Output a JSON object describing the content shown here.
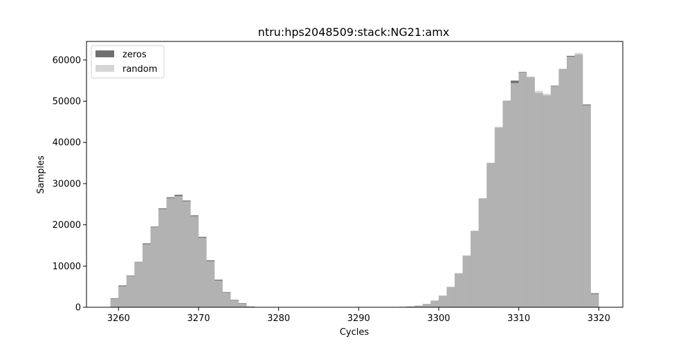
{
  "chart_data": {
    "type": "bar",
    "title": "ntru:hps2048509:stack:NG21:amx",
    "xlabel": "Cycles",
    "ylabel": "Samples",
    "xlim": [
      3256,
      3323
    ],
    "ylim": [
      0,
      64500
    ],
    "xticks": [
      3260,
      3270,
      3280,
      3290,
      3300,
      3310,
      3320
    ],
    "yticks": [
      0,
      10000,
      20000,
      30000,
      40000,
      50000,
      60000
    ],
    "grid": false,
    "legend_position": "top-left",
    "bin_width": 1,
    "x": [
      3259,
      3260,
      3261,
      3262,
      3263,
      3264,
      3265,
      3266,
      3267,
      3268,
      3269,
      3270,
      3271,
      3272,
      3273,
      3274,
      3275,
      3276,
      3277,
      3278,
      3279,
      3280,
      3281,
      3282,
      3283,
      3284,
      3285,
      3286,
      3287,
      3288,
      3289,
      3290,
      3291,
      3292,
      3293,
      3294,
      3295,
      3296,
      3297,
      3298,
      3299,
      3300,
      3301,
      3302,
      3303,
      3304,
      3305,
      3306,
      3307,
      3308,
      3309,
      3310,
      3311,
      3312,
      3313,
      3314,
      3315,
      3316,
      3317,
      3318,
      3319
    ],
    "series": [
      {
        "name": "zeros",
        "color": "#404040",
        "values": [
          2200,
          5300,
          7700,
          11000,
          15500,
          19600,
          24000,
          26700,
          27300,
          25900,
          22300,
          17100,
          11400,
          6700,
          3700,
          1800,
          1000,
          200,
          0,
          0,
          0,
          0,
          0,
          0,
          0,
          0,
          0,
          0,
          0,
          0,
          0,
          0,
          0,
          0,
          0,
          0,
          100,
          200,
          400,
          800,
          1600,
          2800,
          4900,
          8200,
          12500,
          18500,
          26400,
          35000,
          43600,
          50100,
          55000,
          57100,
          55800,
          52000,
          51400,
          53800,
          57800,
          61000,
          61300,
          49200,
          3400
        ]
      },
      {
        "name": "random",
        "color": "#c8c8c8",
        "values": [
          2100,
          5100,
          7600,
          10900,
          15300,
          19500,
          23800,
          26500,
          27000,
          25700,
          22100,
          16900,
          11200,
          6500,
          3600,
          1700,
          900,
          150,
          0,
          0,
          0,
          0,
          0,
          0,
          0,
          0,
          0,
          0,
          0,
          0,
          0,
          0,
          0,
          0,
          0,
          0,
          80,
          200,
          420,
          820,
          1650,
          2850,
          5000,
          8300,
          12600,
          18600,
          26500,
          35100,
          43800,
          50200,
          54400,
          57000,
          56000,
          52500,
          51800,
          53700,
          57900,
          60800,
          61700,
          49000,
          3200
        ]
      }
    ]
  }
}
